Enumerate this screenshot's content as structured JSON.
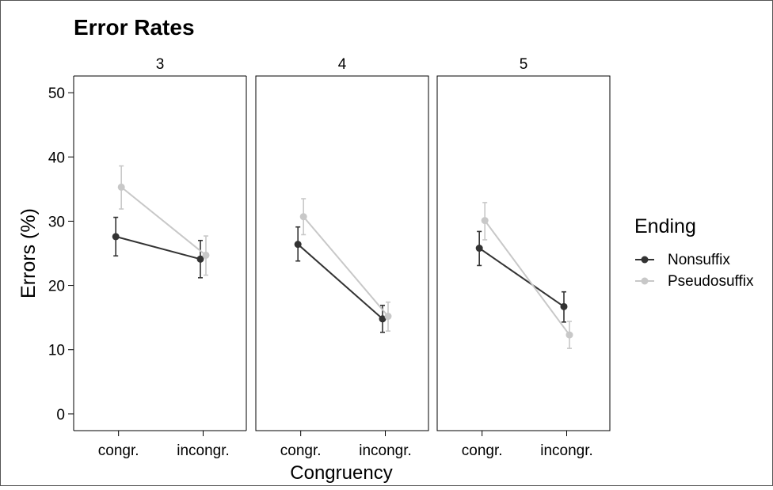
{
  "chart_data": {
    "type": "line",
    "title": "Error Rates",
    "xlabel": "Congruency",
    "ylabel": "Errors (%)",
    "ylim": [
      -2.6,
      52.6
    ],
    "yticks": [
      0,
      10,
      20,
      30,
      40,
      50
    ],
    "categories": [
      "congr.",
      "incongr."
    ],
    "grid": false,
    "legend": {
      "title": "Ending",
      "placement": "right",
      "entries": [
        "Nonsuffix",
        "Pseudosuffix"
      ]
    },
    "series_colors": {
      "Nonsuffix": "#333333",
      "Pseudosuffix": "#c8c8c8"
    },
    "facets": [
      {
        "label": "3",
        "series": [
          {
            "name": "Nonsuffix",
            "values": [
              27.6,
              24.1
            ],
            "lower": [
              24.6,
              21.2
            ],
            "upper": [
              30.6,
              27.0
            ]
          },
          {
            "name": "Pseudosuffix",
            "values": [
              35.3,
              24.7
            ],
            "lower": [
              31.9,
              21.6
            ],
            "upper": [
              38.6,
              27.7
            ]
          }
        ]
      },
      {
        "label": "4",
        "series": [
          {
            "name": "Nonsuffix",
            "values": [
              26.4,
              14.8
            ],
            "lower": [
              23.8,
              12.7
            ],
            "upper": [
              29.1,
              16.9
            ]
          },
          {
            "name": "Pseudosuffix",
            "values": [
              30.7,
              15.2
            ],
            "lower": [
              27.9,
              12.9
            ],
            "upper": [
              33.5,
              17.4
            ]
          }
        ]
      },
      {
        "label": "5",
        "series": [
          {
            "name": "Nonsuffix",
            "values": [
              25.8,
              16.7
            ],
            "lower": [
              23.1,
              14.3
            ],
            "upper": [
              28.4,
              19.0
            ]
          },
          {
            "name": "Pseudosuffix",
            "values": [
              30.1,
              12.3
            ],
            "lower": [
              27.1,
              10.2
            ],
            "upper": [
              32.9,
              14.4
            ]
          }
        ]
      }
    ]
  }
}
